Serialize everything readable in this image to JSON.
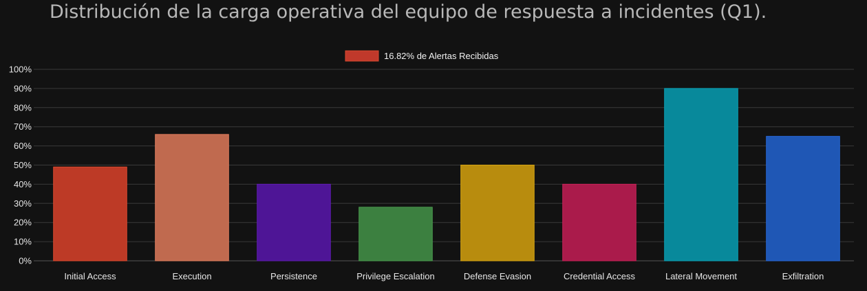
{
  "page_title": "Distribución de la carga operativa del equipo de respuesta a incidentes (Q1).",
  "chart_data": {
    "type": "bar",
    "title": "Distribución de la carga operativa del equipo de respuesta a incidentes (Q1).",
    "xlabel": "",
    "ylabel": "",
    "ylim": [
      0,
      100
    ],
    "y_ticks": [
      "0%",
      "10%",
      "20%",
      "30%",
      "40%",
      "50%",
      "60%",
      "70%",
      "80%",
      "90%",
      "100%"
    ],
    "grid": true,
    "legend_position": "top-center",
    "categories": [
      "Initial Access",
      "Execution",
      "Persistence",
      "Privilege Escalation",
      "Defense Evasion",
      "Credential Access",
      "Lateral Movement",
      "Exfiltration"
    ],
    "series": [
      {
        "name": "16.82% de Alertas Recibidas",
        "color": "#c0392b",
        "values": [
          49,
          66,
          40,
          28,
          50,
          40,
          90,
          65
        ]
      }
    ],
    "bar_colors": [
      "#bd3a26",
      "#c06a4f",
      "#4e1596",
      "#3c8040",
      "#b88c0e",
      "#aa1b4b",
      "#08899b",
      "#1f57b5"
    ],
    "bar_border_colors": [
      "#d9492f",
      "#e07d5e",
      "#5f1cb0",
      "#4a9a4e",
      "#d6a512",
      "#c62257",
      "#0aa2b6",
      "#2767d6"
    ]
  }
}
